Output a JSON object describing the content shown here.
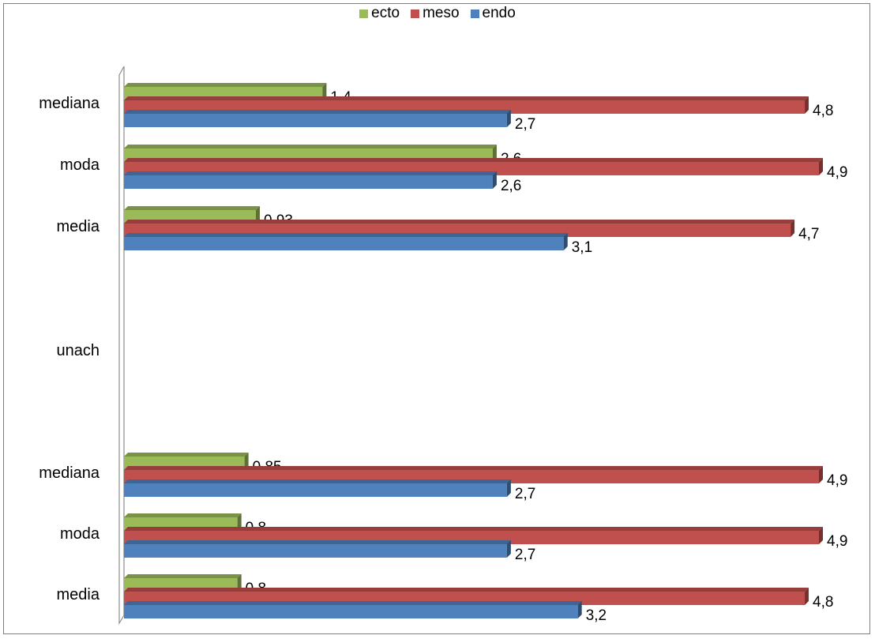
{
  "chart_data": {
    "type": "bar",
    "orientation": "horizontal",
    "categories": [
      "mediana",
      "moda",
      "media",
      "unach",
      "mediana",
      "moda",
      "media"
    ],
    "series": [
      {
        "name": "ecto",
        "color": "#9bbb59",
        "values": [
          1.4,
          2.6,
          0.93,
          null,
          0.85,
          0.8,
          0.8
        ]
      },
      {
        "name": "meso",
        "color": "#c0504d",
        "values": [
          4.8,
          4.9,
          4.7,
          null,
          4.9,
          4.9,
          4.8
        ]
      },
      {
        "name": "endo",
        "color": "#4f81bd",
        "values": [
          2.7,
          2.6,
          3.1,
          null,
          2.7,
          2.7,
          3.2
        ]
      }
    ],
    "data_labels": [
      [
        "1,4",
        "2,6",
        "0,93",
        "",
        "0,85",
        "0,8",
        "0,8"
      ],
      [
        "4,8",
        "4,9",
        "4,7",
        "",
        "4,9",
        "4,9",
        "4,8"
      ],
      [
        "2,7",
        "2,6",
        "3,1",
        "",
        "2,7",
        "2,7",
        "3,2"
      ]
    ],
    "xlim": [
      0,
      4.9
    ],
    "legend_position": "top",
    "grid": false
  }
}
